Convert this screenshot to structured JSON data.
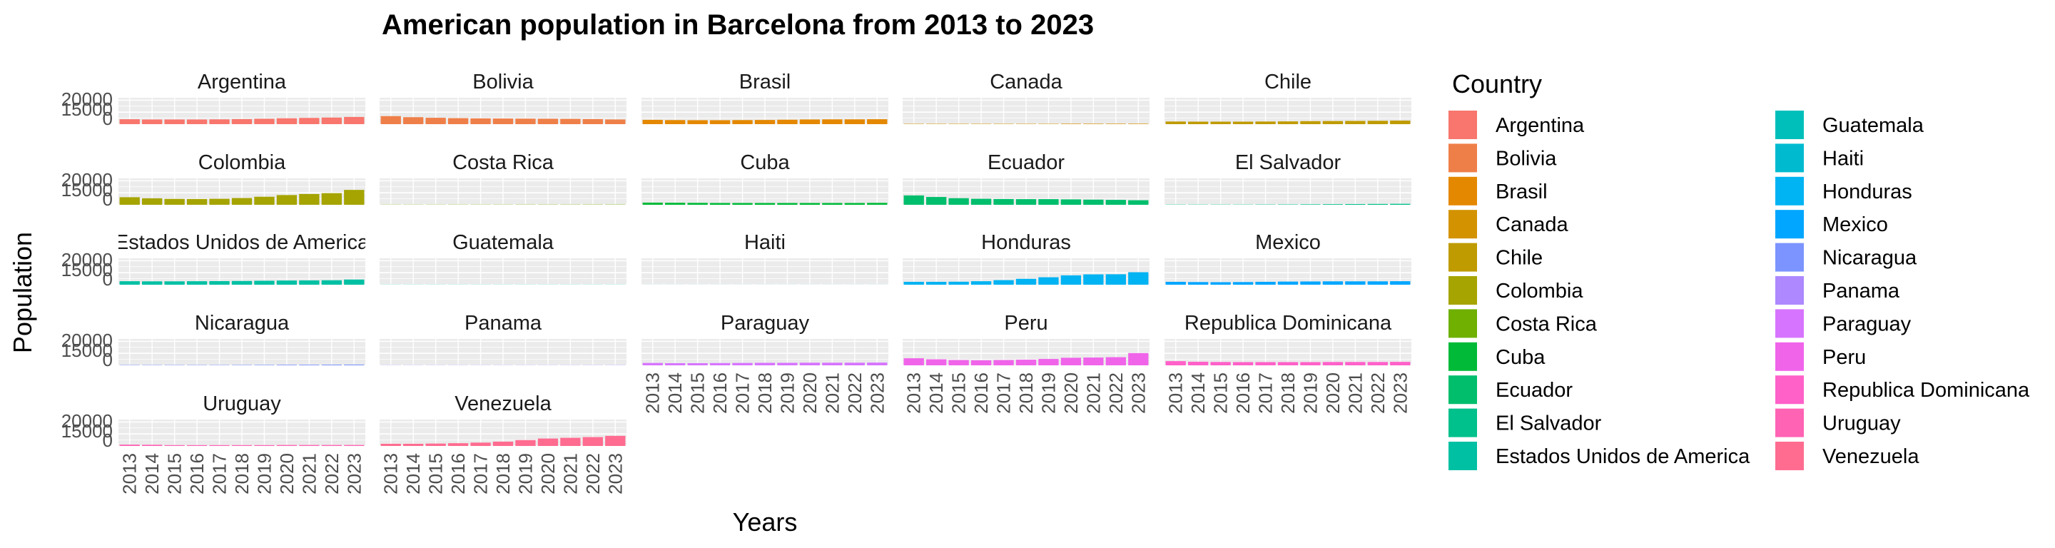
{
  "chart_data": {
    "type": "bar",
    "title": "American population in Barcelona from 2013 to 2023",
    "xlabel": "Years",
    "ylabel": "Population",
    "ylim": [
      0,
      22000
    ],
    "y_ticks": [
      "20000",
      "15000",
      "0"
    ],
    "categories": [
      "2013",
      "2014",
      "2015",
      "2016",
      "2017",
      "2018",
      "2019",
      "2020",
      "2021",
      "2022",
      "2023"
    ],
    "grid": true,
    "legend": {
      "title": "Country",
      "placement": "right",
      "columns": 2
    },
    "series": [
      {
        "name": "Argentina",
        "color": "#F8766D",
        "values": [
          4100,
          3900,
          3900,
          3900,
          4000,
          4200,
          4500,
          4900,
          5200,
          5500,
          6000
        ]
      },
      {
        "name": "Bolivia",
        "color": "#EF7F49",
        "values": [
          6700,
          5800,
          5300,
          5000,
          4800,
          4700,
          4600,
          4500,
          4400,
          4200,
          3900
        ]
      },
      {
        "name": "Brasil",
        "color": "#E48800",
        "values": [
          3600,
          3400,
          3300,
          3300,
          3400,
          3500,
          3700,
          3900,
          4000,
          4000,
          4100
        ]
      },
      {
        "name": "Canada",
        "color": "#D39200",
        "values": [
          300,
          300,
          300,
          300,
          300,
          300,
          300,
          400,
          400,
          400,
          400
        ]
      },
      {
        "name": "Chile",
        "color": "#BF9B00",
        "values": [
          2200,
          2100,
          2100,
          2100,
          2200,
          2300,
          2500,
          2600,
          2700,
          2800,
          3000
        ]
      },
      {
        "name": "Colombia",
        "color": "#A5A400",
        "values": [
          6300,
          5400,
          4900,
          4800,
          5000,
          5600,
          6700,
          8100,
          9000,
          9700,
          12400
        ]
      },
      {
        "name": "Costa Rica",
        "color": "#6FB000",
        "values": [
          150,
          150,
          150,
          160,
          160,
          170,
          180,
          190,
          200,
          210,
          220
        ]
      },
      {
        "name": "Cuba",
        "color": "#00BA38",
        "values": [
          1800,
          1700,
          1600,
          1500,
          1500,
          1500,
          1500,
          1500,
          1500,
          1500,
          1600
        ]
      },
      {
        "name": "Ecuador",
        "color": "#00BE6C",
        "values": [
          7800,
          6500,
          5500,
          5000,
          4800,
          4700,
          4700,
          4500,
          4300,
          4100,
          3800
        ]
      },
      {
        "name": "El Salvador",
        "color": "#00C08B",
        "values": [
          200,
          200,
          200,
          200,
          250,
          300,
          400,
          500,
          600,
          700,
          800
        ]
      },
      {
        "name": "Estados Unidos de America",
        "color": "#00C0A3",
        "values": [
          2900,
          2800,
          2800,
          2900,
          3000,
          3100,
          3300,
          3500,
          3600,
          3700,
          4300
        ]
      },
      {
        "name": "Guatemala",
        "color": "#00BFBB",
        "values": [
          100,
          100,
          100,
          100,
          100,
          100,
          100,
          100,
          100,
          100,
          100
        ]
      },
      {
        "name": "Haiti",
        "color": "#00BBD0",
        "values": [
          50,
          50,
          50,
          50,
          50,
          50,
          50,
          50,
          50,
          50,
          50
        ]
      },
      {
        "name": "Honduras",
        "color": "#00B3F2",
        "values": [
          2400,
          2400,
          2500,
          2900,
          3800,
          4900,
          6200,
          7800,
          8600,
          8700,
          10400
        ]
      },
      {
        "name": "Mexico",
        "color": "#00A6FF",
        "values": [
          2400,
          2200,
          2100,
          2200,
          2400,
          2600,
          2700,
          2800,
          2800,
          2800,
          2900
        ]
      },
      {
        "name": "Nicaragua",
        "color": "#7C94FF",
        "values": [
          300,
          300,
          300,
          300,
          300,
          350,
          400,
          500,
          550,
          600,
          650
        ]
      },
      {
        "name": "Panama",
        "color": "#AD88FF",
        "values": [
          150,
          150,
          150,
          150,
          150,
          150,
          150,
          150,
          150,
          160,
          170
        ]
      },
      {
        "name": "Paraguay",
        "color": "#D774FF",
        "values": [
          2000,
          1800,
          1800,
          1900,
          2000,
          2100,
          2100,
          2200,
          2200,
          2200,
          2300
        ]
      },
      {
        "name": "Peru",
        "color": "#F064EA",
        "values": [
          5900,
          5000,
          4400,
          4200,
          4400,
          4700,
          5300,
          6300,
          6500,
          6800,
          10200
        ]
      },
      {
        "name": "Republica Dominicana",
        "color": "#FF61C9",
        "values": [
          3500,
          3000,
          2800,
          2700,
          2700,
          2700,
          2700,
          2800,
          2800,
          2800,
          2900
        ]
      },
      {
        "name": "Uruguay",
        "color": "#FF63B4",
        "values": [
          1100,
          1000,
          700,
          700,
          700,
          700,
          700,
          800,
          800,
          800,
          800
        ]
      },
      {
        "name": "Venezuela",
        "color": "#FF6C90",
        "values": [
          1800,
          1800,
          2000,
          2300,
          2800,
          3600,
          4900,
          6200,
          6800,
          7400,
          8400
        ]
      }
    ]
  }
}
